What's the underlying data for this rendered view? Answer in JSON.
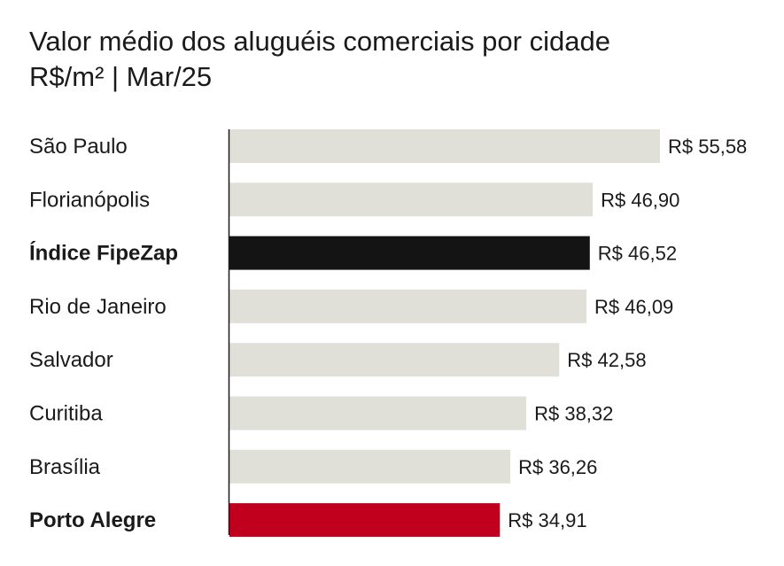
{
  "header": {
    "title": "Valor médio dos aluguéis comerciais por cidade",
    "subtitle": "R$/m² | Mar/25"
  },
  "colors": {
    "default_bar": "#e1e0d8",
    "benchmark_bar": "#141414",
    "highlight_bar": "#c0001d",
    "axis": "#1a1a1a",
    "highlight_text": "#c0001d"
  },
  "chart_data": {
    "type": "bar",
    "orientation": "horizontal",
    "title": "Valor médio dos aluguéis comerciais por cidade",
    "subtitle": "R$/m² | Mar/25",
    "categories": [
      "São Paulo",
      "Florianópolis",
      "Índice FipeZap",
      "Rio de Janeiro",
      "Salvador",
      "Curitiba",
      "Brasília",
      "Porto Alegre"
    ],
    "values": [
      55.58,
      46.9,
      46.52,
      46.09,
      42.58,
      38.32,
      36.26,
      34.91
    ],
    "value_labels": [
      "R$ 55,58",
      "R$ 46,90",
      "R$ 46,52",
      "R$ 46,09",
      "R$ 42,58",
      "R$ 38,32",
      "R$ 36,26",
      "R$ 34,91"
    ],
    "styles": [
      "default",
      "default",
      "benchmark",
      "default",
      "default",
      "default",
      "default",
      "highlight"
    ],
    "xlim": [
      0,
      55.58
    ],
    "grid": false,
    "legend": "none"
  }
}
